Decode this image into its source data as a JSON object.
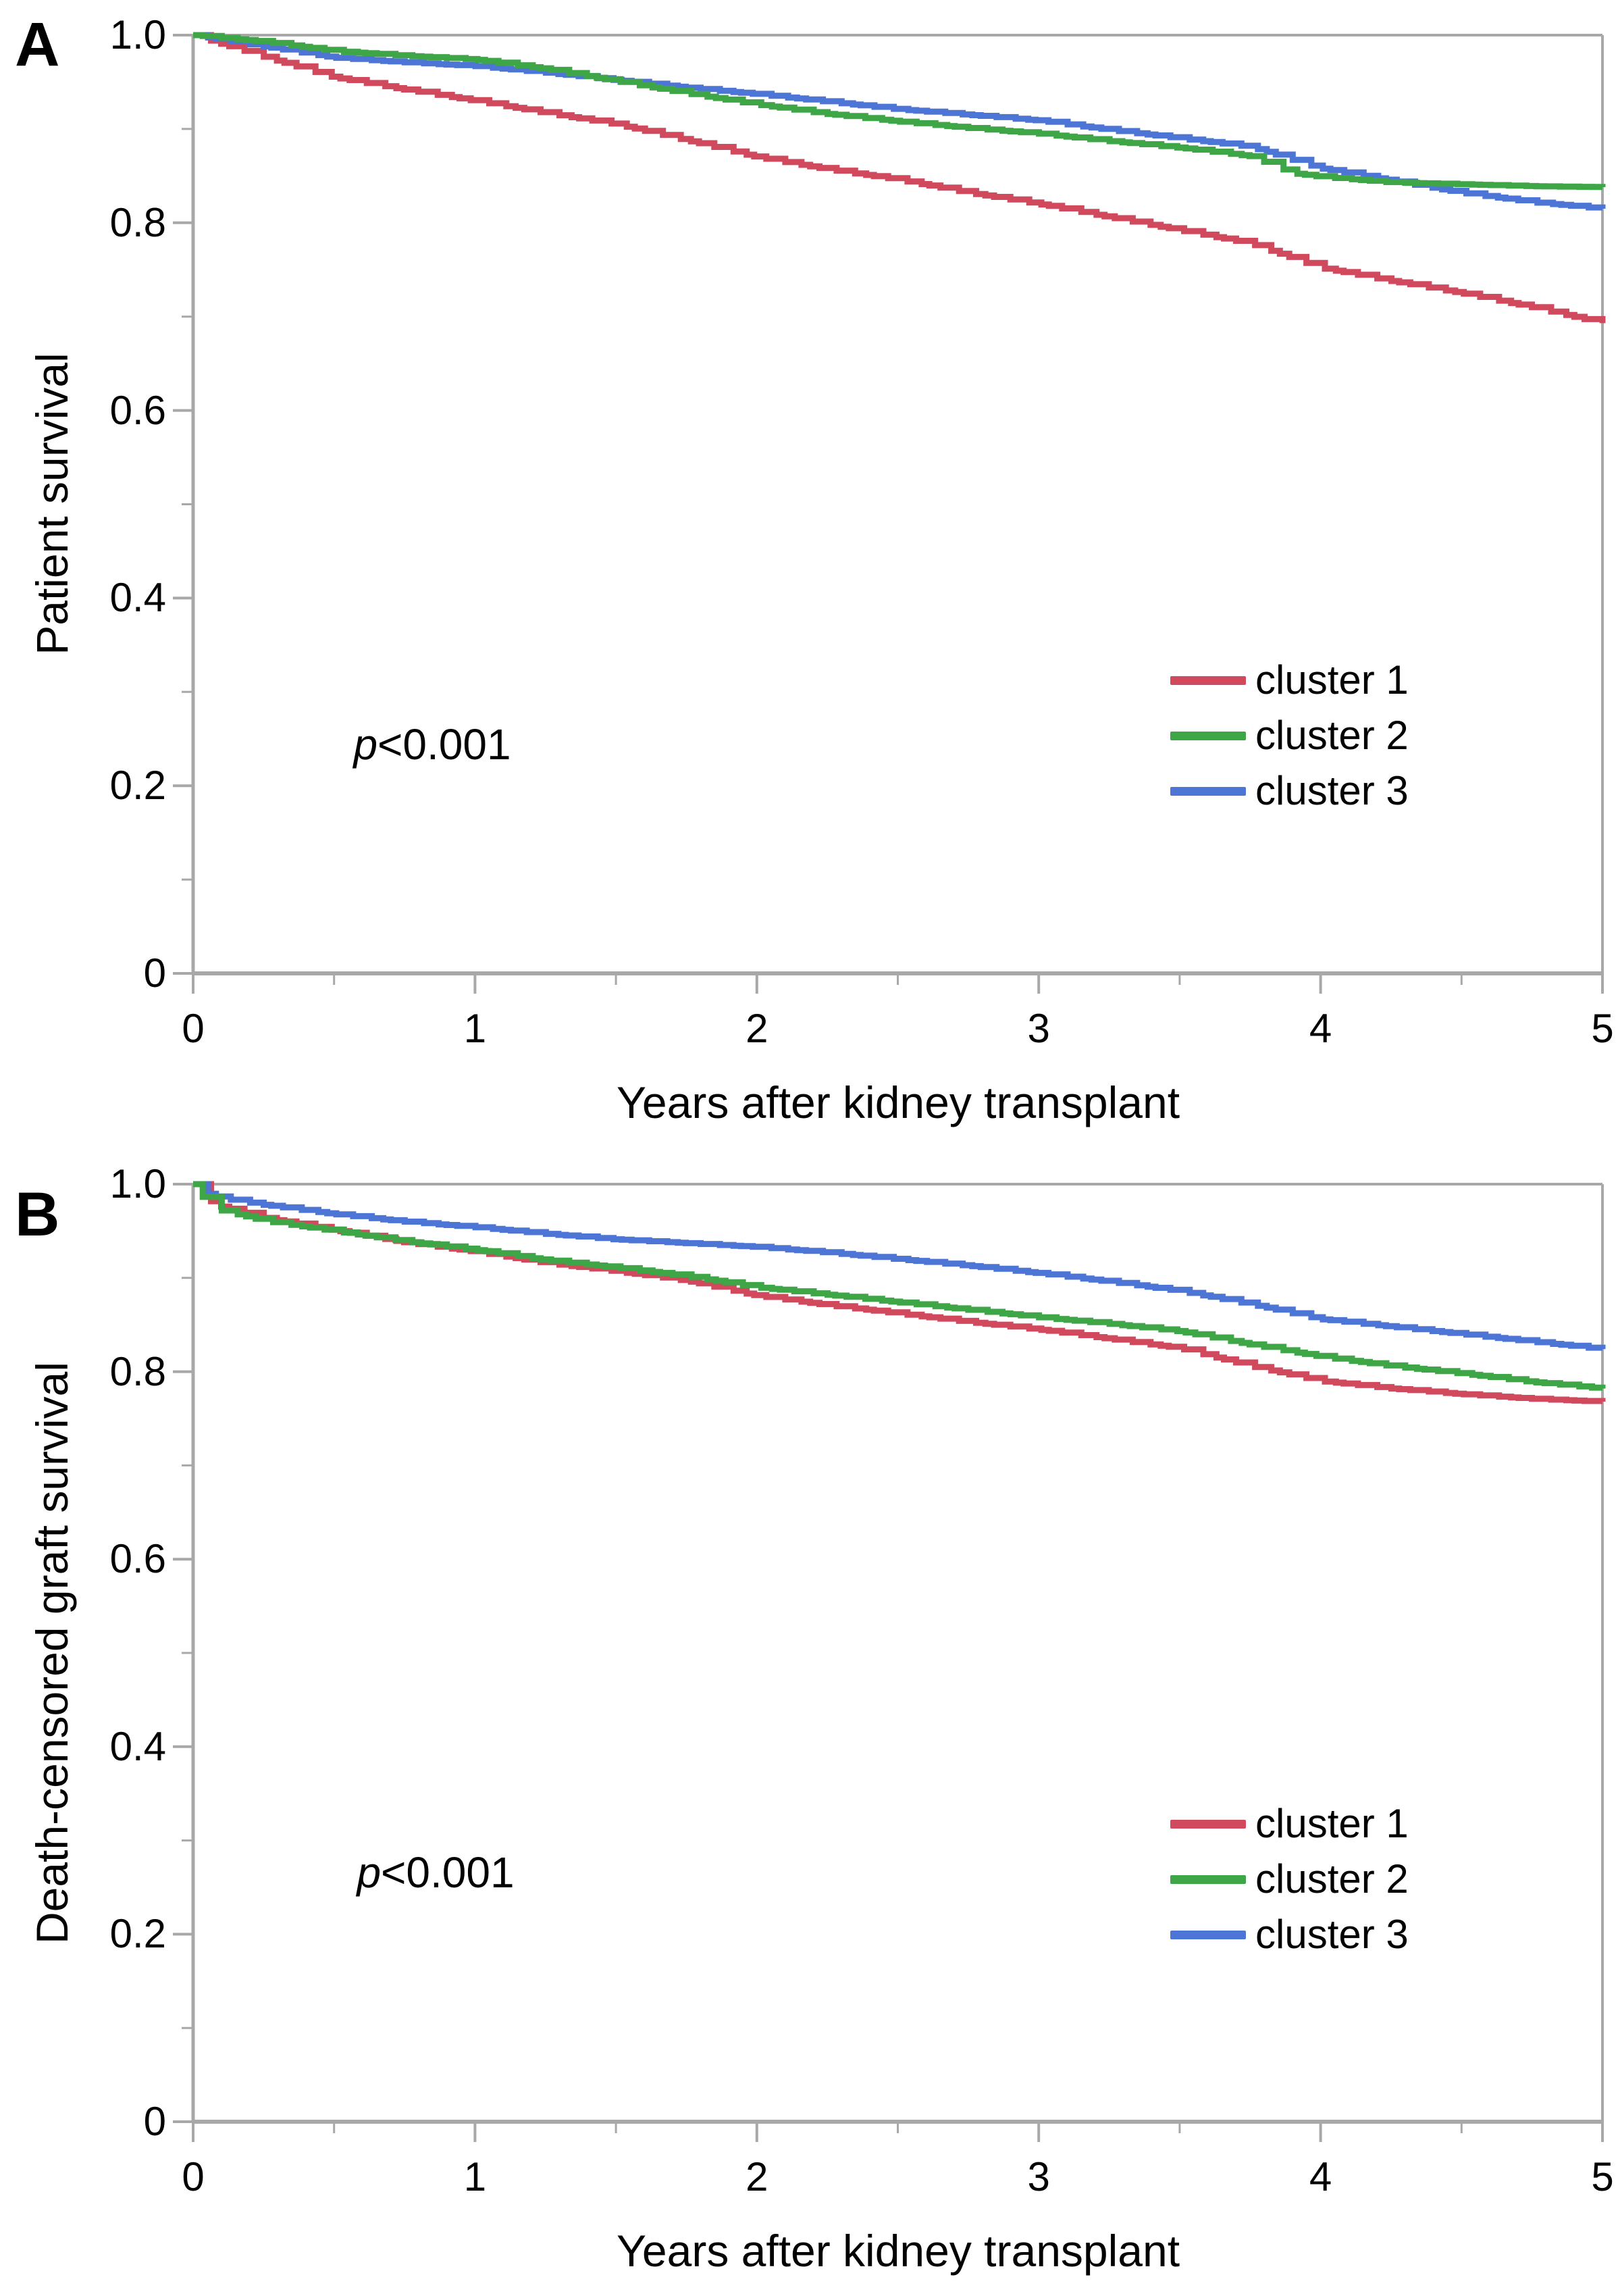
{
  "figure_background": "#ffffff",
  "axis_color": "#a8a8a8",
  "chart_data": [
    {
      "panel": "A",
      "panel_label": "A",
      "type": "line",
      "subtype": "kaplan-meier-step",
      "xlabel": "Years after kidney transplant",
      "ylabel": "Patient survival",
      "annotation": "p<0.001",
      "xlim": [
        0,
        5
      ],
      "ylim": [
        0,
        1.0
      ],
      "grid": false,
      "legend_position": "inside-right-middle",
      "x_ticks": {
        "major": [
          0,
          1,
          2,
          3,
          4,
          5
        ],
        "labels": [
          "0",
          "1",
          "2",
          "3",
          "4",
          "5"
        ],
        "minor": [
          0.5,
          1.5,
          2.5,
          3.5,
          4.5
        ]
      },
      "y_ticks": {
        "major": [
          1.0,
          0.8,
          0.6,
          0.4,
          0.2,
          0
        ],
        "labels": [
          "1.0",
          "0.8",
          "0.6",
          "0.4",
          "0.2",
          "0"
        ],
        "minor": [
          0.9,
          0.7,
          0.5,
          0.3,
          0.1
        ]
      },
      "series": [
        {
          "name": "cluster 1",
          "color": "#d0495c",
          "x": [
            0,
            0.25,
            0.5,
            0.75,
            1,
            1.25,
            1.5,
            1.75,
            2,
            2.25,
            2.5,
            2.75,
            3,
            3.25,
            3.5,
            3.75,
            4,
            4.25,
            4.5,
            4.75,
            5
          ],
          "y": [
            1,
            0.977,
            0.955,
            0.942,
            0.93,
            0.917,
            0.905,
            0.888,
            0.87,
            0.857,
            0.846,
            0.832,
            0.82,
            0.806,
            0.792,
            0.778,
            0.752,
            0.738,
            0.725,
            0.71,
            0.693
          ]
        },
        {
          "name": "cluster 2",
          "color": "#3ea647",
          "x": [
            0,
            0.25,
            0.5,
            0.75,
            1,
            1.25,
            1.5,
            1.75,
            2,
            2.25,
            2.5,
            2.75,
            3,
            3.25,
            3.5,
            3.75,
            3.9,
            4,
            4.25,
            4.5,
            4.75,
            5
          ],
          "y": [
            1,
            0.993,
            0.983,
            0.978,
            0.974,
            0.964,
            0.951,
            0.938,
            0.926,
            0.916,
            0.908,
            0.901,
            0.895,
            0.887,
            0.88,
            0.871,
            0.853,
            0.849,
            0.843,
            0.841,
            0.839,
            0.838
          ]
        },
        {
          "name": "cluster 3",
          "color": "#4c75d5",
          "x": [
            0,
            0.25,
            0.5,
            0.75,
            1,
            1.25,
            1.5,
            1.75,
            2,
            2.25,
            2.5,
            2.75,
            3,
            3.25,
            3.5,
            3.75,
            4,
            4.25,
            4.5,
            4.75,
            5
          ],
          "y": [
            1,
            0.988,
            0.976,
            0.971,
            0.967,
            0.96,
            0.952,
            0.944,
            0.937,
            0.929,
            0.921,
            0.915,
            0.909,
            0.899,
            0.89,
            0.881,
            0.858,
            0.845,
            0.832,
            0.822,
            0.815
          ]
        }
      ]
    },
    {
      "panel": "B",
      "panel_label": "B",
      "type": "line",
      "subtype": "kaplan-meier-step",
      "xlabel": "Years after kidney transplant",
      "ylabel": "Death-censored graft survival",
      "annotation": "p<0.001",
      "xlim": [
        0,
        5
      ],
      "ylim": [
        0,
        1.0
      ],
      "grid": false,
      "legend_position": "inside-right-middle",
      "x_ticks": {
        "major": [
          0,
          1,
          2,
          3,
          4,
          5
        ],
        "labels": [
          "0",
          "1",
          "2",
          "3",
          "4",
          "5"
        ],
        "minor": [
          0.5,
          1.5,
          2.5,
          3.5,
          4.5
        ]
      },
      "y_ticks": {
        "major": [
          1.0,
          0.8,
          0.6,
          0.4,
          0.2,
          0
        ],
        "labels": [
          "1.0",
          "0.8",
          "0.6",
          "0.4",
          "0.2",
          "0"
        ],
        "minor": [
          0.9,
          0.7,
          0.5,
          0.3,
          0.1
        ]
      },
      "series": [
        {
          "name": "cluster 1",
          "color": "#d0495c",
          "x": [
            0,
            0.05,
            0.1,
            0.25,
            0.5,
            0.75,
            1,
            1.25,
            1.5,
            1.75,
            2,
            2.25,
            2.5,
            2.75,
            3,
            3.25,
            3.5,
            3.75,
            4,
            4.25,
            4.5,
            4.75,
            5
          ],
          "y": [
            1,
            0.984,
            0.976,
            0.964,
            0.951,
            0.938,
            0.928,
            0.916,
            0.907,
            0.897,
            0.881,
            0.871,
            0.862,
            0.853,
            0.845,
            0.835,
            0.825,
            0.806,
            0.79,
            0.782,
            0.776,
            0.771,
            0.768
          ]
        },
        {
          "name": "cluster 2",
          "color": "#3ea647",
          "x": [
            0,
            0.05,
            0.1,
            0.25,
            0.5,
            0.75,
            1,
            1.25,
            1.5,
            1.75,
            2,
            2.25,
            2.5,
            2.75,
            3,
            3.25,
            3.5,
            3.75,
            4,
            4.25,
            4.5,
            4.75,
            5
          ],
          "y": [
            1,
            0.98,
            0.972,
            0.961,
            0.95,
            0.939,
            0.93,
            0.919,
            0.911,
            0.902,
            0.89,
            0.882,
            0.874,
            0.866,
            0.858,
            0.851,
            0.843,
            0.829,
            0.816,
            0.806,
            0.798,
            0.789,
            0.782
          ]
        },
        {
          "name": "cluster 3",
          "color": "#4c75d5",
          "x": [
            0,
            0.05,
            0.1,
            0.25,
            0.5,
            0.75,
            1,
            1.25,
            1.5,
            1.75,
            2,
            2.25,
            2.5,
            2.75,
            3,
            3.25,
            3.5,
            3.75,
            4,
            4.25,
            4.5,
            4.75,
            5
          ],
          "y": [
            1,
            0.99,
            0.985,
            0.978,
            0.968,
            0.96,
            0.954,
            0.947,
            0.941,
            0.937,
            0.933,
            0.927,
            0.92,
            0.913,
            0.905,
            0.896,
            0.886,
            0.872,
            0.856,
            0.848,
            0.84,
            0.832,
            0.824
          ]
        }
      ]
    }
  ]
}
